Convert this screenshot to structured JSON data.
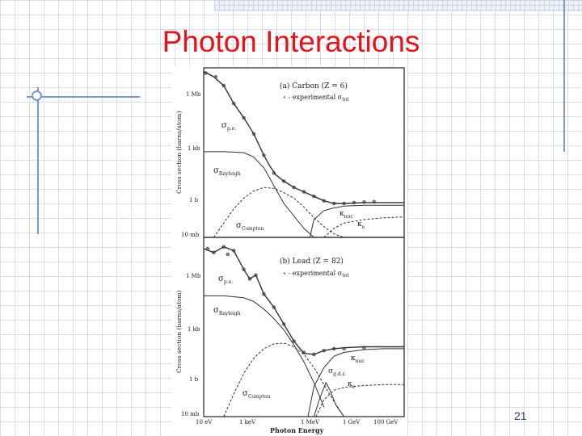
{
  "slide": {
    "title": "Photon Interactions",
    "page_number": "21"
  },
  "chart_data": [
    {
      "type": "line",
      "panel_label": "(a) Carbon (Z = 6)",
      "legend_text": "∘ - experimental σ",
      "legend_sub": "tot",
      "ylabel": "Cross section (barns/atom)",
      "yticks": [
        "1 Mb",
        "1 kb",
        "1 b",
        "10 mb"
      ],
      "curve_labels": [
        "σ",
        "p.e.",
        "σ",
        "Rayleigh",
        "σ",
        "Compton",
        "κ",
        "nuc",
        "κ",
        "e"
      ],
      "axis": {
        "x": "log10(E/eV)",
        "xlim": [
          1,
          11
        ],
        "y": "log10(σ/b)",
        "ylim": [
          -2,
          7.5
        ]
      },
      "series": [
        {
          "name": "σ tot (experimental)",
          "style": "dots",
          "x": [
            1.1,
            1.6,
            2.0,
            2.5,
            3.0,
            3.5,
            4.0,
            4.5,
            5.0,
            5.5,
            6.0,
            6.5,
            7.0,
            7.5,
            8.0,
            8.5,
            9.0,
            9.5
          ],
          "y": [
            7.2,
            7.0,
            6.5,
            5.5,
            4.7,
            3.8,
            2.6,
            1.6,
            1.15,
            0.8,
            0.55,
            0.3,
            0.05,
            -0.1,
            -0.1,
            -0.05,
            -0.02,
            0.0
          ]
        },
        {
          "name": "σ tot",
          "style": "solid",
          "x": [
            1.0,
            1.5,
            2.0,
            2.5,
            3.0,
            3.5,
            4.0,
            4.3,
            4.6,
            5.0,
            5.5,
            6.0,
            6.5,
            7.0,
            7.5,
            8.0,
            9.0,
            11.0
          ],
          "y": [
            7.3,
            7.0,
            6.5,
            5.5,
            4.7,
            3.8,
            2.6,
            2.0,
            1.5,
            1.15,
            0.8,
            0.55,
            0.3,
            0.05,
            -0.1,
            -0.1,
            -0.05,
            -0.05
          ]
        },
        {
          "name": "σ Rayleigh",
          "style": "solid",
          "x": [
            1.0,
            2.0,
            3.0,
            3.5,
            4.0,
            4.5,
            5.0,
            5.5,
            6.0,
            6.5
          ],
          "y": [
            2.8,
            2.8,
            2.75,
            2.5,
            1.9,
            0.9,
            -0.1,
            -0.8,
            -1.5,
            -2.2
          ]
        },
        {
          "name": "σ Compton",
          "style": "dashed",
          "x": [
            1.5,
            2.0,
            2.5,
            3.0,
            3.5,
            4.0,
            4.5,
            5.0,
            5.5,
            6.0,
            6.5,
            7.0,
            7.5,
            8.0
          ],
          "y": [
            -2.0,
            -1.2,
            -0.4,
            0.2,
            0.6,
            0.8,
            0.75,
            0.5,
            0.2,
            -0.3,
            -0.9,
            -1.4,
            -1.8,
            -2.0
          ]
        },
        {
          "name": "κ nuc",
          "style": "solid",
          "x": [
            6.3,
            6.5,
            7.0,
            7.5,
            8.0,
            9.0,
            10.0,
            11.0
          ],
          "y": [
            -2.0,
            -1.0,
            -0.5,
            -0.35,
            -0.25,
            -0.2,
            -0.2,
            -0.2
          ]
        },
        {
          "name": "κ e",
          "style": "dashed",
          "x": [
            7.0,
            7.5,
            8.0,
            9.0,
            10.0,
            11.0
          ],
          "y": [
            -2.0,
            -1.5,
            -1.2,
            -1.0,
            -0.9,
            -0.85
          ]
        }
      ]
    },
    {
      "type": "line",
      "panel_label": "(b) Lead (Z = 82)",
      "legend_text": "∘ - experimental σ",
      "legend_sub": "tot",
      "ylabel": "Cross section (barns/atom)",
      "yticks": [
        "1 Mb",
        "1 kb",
        "1 b",
        "10 mb"
      ],
      "xticks": [
        "10 eV",
        "1 keV",
        "1 MeV",
        "1 GeV",
        "100 GeV"
      ],
      "xlabel": "Photon Energy",
      "curve_labels": [
        "σ",
        "p.e.",
        "σ",
        "Rayleigh",
        "σ",
        "Compton",
        "σ",
        "g.d.r.",
        "κ",
        "nuc",
        "κ",
        "e"
      ],
      "axis": {
        "x": "log10(E/eV)",
        "xlim": [
          1,
          11
        ],
        "y": "log10(σ/b)",
        "ylim": [
          -2,
          7.5
        ]
      },
      "series": [
        {
          "name": "σ tot (experimental)",
          "style": "dots",
          "x": [
            1.2,
            1.5,
            2.0,
            2.2,
            2.5,
            3.0,
            3.3,
            3.6,
            4.0,
            4.5,
            5.0,
            5.5,
            6.0,
            6.5,
            7.0,
            7.5,
            8.0,
            9.0
          ],
          "y": [
            6.9,
            6.7,
            7.0,
            6.6,
            6.8,
            5.8,
            5.3,
            5.5,
            4.5,
            3.8,
            2.9,
            2.0,
            1.4,
            1.3,
            1.5,
            1.6,
            1.6,
            1.65
          ]
        },
        {
          "name": "σ tot",
          "style": "solid",
          "x": [
            1.0,
            1.5,
            2.0,
            2.5,
            3.0,
            3.3,
            3.6,
            4.0,
            4.5,
            5.0,
            5.5,
            6.0,
            6.5,
            7.0,
            7.5,
            8.0,
            9.0,
            11.0
          ],
          "y": [
            6.9,
            6.7,
            7.0,
            6.8,
            5.8,
            5.3,
            5.5,
            4.5,
            3.8,
            2.9,
            2.0,
            1.35,
            1.3,
            1.5,
            1.6,
            1.65,
            1.7,
            1.7
          ]
        },
        {
          "name": "σ Rayleigh",
          "style": "solid",
          "x": [
            1.0,
            2.0,
            3.0,
            3.5,
            4.0,
            4.5,
            5.0,
            5.5,
            6.0,
            6.5,
            7.0
          ],
          "y": [
            4.4,
            4.4,
            4.3,
            4.1,
            3.7,
            3.2,
            2.6,
            1.8,
            0.9,
            -0.2,
            -1.5
          ]
        },
        {
          "name": "σ Compton",
          "style": "dashed",
          "x": [
            2.0,
            2.5,
            3.0,
            3.5,
            4.0,
            4.5,
            5.0,
            5.5,
            6.0,
            6.5,
            7.0,
            7.5,
            8.0
          ],
          "y": [
            -2.0,
            -0.8,
            0.3,
            1.1,
            1.6,
            1.85,
            1.9,
            1.7,
            1.3,
            0.6,
            -0.3,
            -1.2,
            -2.0
          ]
        },
        {
          "name": "σ g.d.r.",
          "style": "solid",
          "x": [
            6.5,
            6.8,
            7.1,
            7.3,
            7.6,
            8.0
          ],
          "y": [
            -2.0,
            -1.0,
            -0.2,
            -0.6,
            -1.4,
            -2.0
          ]
        },
        {
          "name": "κ nuc",
          "style": "solid",
          "x": [
            6.2,
            6.5,
            7.0,
            7.5,
            8.0,
            9.0,
            10.0,
            11.0
          ],
          "y": [
            -2.0,
            -0.4,
            0.6,
            1.2,
            1.4,
            1.55,
            1.6,
            1.6
          ]
        },
        {
          "name": "κ e",
          "style": "dashed",
          "x": [
            6.6,
            7.0,
            7.5,
            8.0,
            9.0,
            10.0,
            11.0
          ],
          "y": [
            -2.0,
            -1.1,
            -0.6,
            -0.45,
            -0.35,
            -0.3,
            -0.3
          ]
        }
      ]
    }
  ]
}
